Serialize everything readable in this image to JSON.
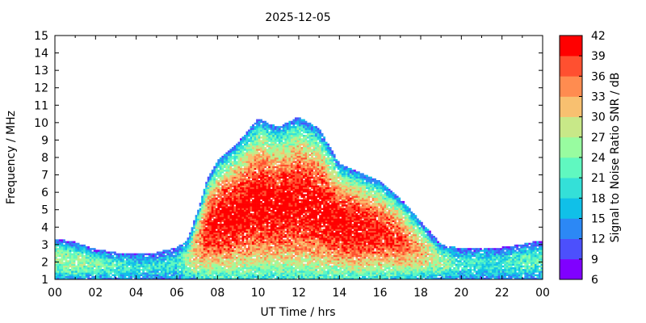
{
  "chart_data": {
    "type": "heatmap",
    "title": "2025-12-05",
    "xlabel": "UT Time / hrs",
    "ylabel": "Frequency / MHz",
    "colorbar_label": "Signal to Noise Ratio SNR / dB",
    "xlim": [
      0,
      24
    ],
    "ylim": [
      1,
      15
    ],
    "x_ticks": [
      "00",
      "02",
      "04",
      "06",
      "08",
      "10",
      "12",
      "14",
      "16",
      "18",
      "20",
      "22",
      "00"
    ],
    "y_ticks": [
      "1",
      "2",
      "3",
      "4",
      "5",
      "6",
      "7",
      "8",
      "9",
      "10",
      "11",
      "12",
      "13",
      "14",
      "15"
    ],
    "colorbar": {
      "range": [
        6,
        42
      ],
      "ticks": [
        "6",
        "9",
        "12",
        "15",
        "18",
        "21",
        "24",
        "27",
        "30",
        "33",
        "36",
        "39",
        "42"
      ],
      "colors": [
        "#8000ff",
        "#4c50fc",
        "#2c88f5",
        "#10c0e8",
        "#34e0d8",
        "#60f8c0",
        "#98fca0",
        "#c8e888",
        "#f8c070",
        "#ff8c50",
        "#ff5030",
        "#ff0000"
      ]
    },
    "envelope": [
      {
        "t": 0,
        "fmin": 1.0,
        "fmax": 3.3,
        "snr_peak": 26
      },
      {
        "t": 1,
        "fmin": 1.0,
        "fmax": 3.1,
        "snr_peak": 26
      },
      {
        "t": 2,
        "fmin": 1.0,
        "fmax": 2.7,
        "snr_peak": 24
      },
      {
        "t": 3,
        "fmin": 1.0,
        "fmax": 2.5,
        "snr_peak": 22
      },
      {
        "t": 4,
        "fmin": 1.0,
        "fmax": 2.4,
        "snr_peak": 20
      },
      {
        "t": 5,
        "fmin": 1.0,
        "fmax": 2.5,
        "snr_peak": 20
      },
      {
        "t": 6,
        "fmin": 1.0,
        "fmax": 2.8,
        "snr_peak": 20
      },
      {
        "t": 6.5,
        "fmin": 1.0,
        "fmax": 3.2,
        "snr_peak": 26
      },
      {
        "t": 7,
        "fmin": 1.0,
        "fmax": 4.8,
        "snr_peak": 34
      },
      {
        "t": 7.5,
        "fmin": 1.0,
        "fmax": 6.8,
        "snr_peak": 40
      },
      {
        "t": 8,
        "fmin": 1.0,
        "fmax": 7.8,
        "snr_peak": 42
      },
      {
        "t": 9,
        "fmin": 1.0,
        "fmax": 8.8,
        "snr_peak": 42
      },
      {
        "t": 10,
        "fmin": 1.0,
        "fmax": 10.2,
        "snr_peak": 42
      },
      {
        "t": 11,
        "fmin": 1.0,
        "fmax": 9.7,
        "snr_peak": 42
      },
      {
        "t": 12,
        "fmin": 1.0,
        "fmax": 10.3,
        "snr_peak": 42
      },
      {
        "t": 13,
        "fmin": 1.0,
        "fmax": 9.6,
        "snr_peak": 42
      },
      {
        "t": 14,
        "fmin": 1.0,
        "fmax": 7.6,
        "snr_peak": 42
      },
      {
        "t": 15,
        "fmin": 1.0,
        "fmax": 7.1,
        "snr_peak": 42
      },
      {
        "t": 16,
        "fmin": 1.0,
        "fmax": 6.6,
        "snr_peak": 40
      },
      {
        "t": 17,
        "fmin": 1.0,
        "fmax": 5.6,
        "snr_peak": 38
      },
      {
        "t": 18,
        "fmin": 1.0,
        "fmax": 4.3,
        "snr_peak": 32
      },
      {
        "t": 19,
        "fmin": 1.0,
        "fmax": 3.0,
        "snr_peak": 26
      },
      {
        "t": 20,
        "fmin": 1.0,
        "fmax": 2.7,
        "snr_peak": 20
      },
      {
        "t": 21,
        "fmin": 1.0,
        "fmax": 2.8,
        "snr_peak": 20
      },
      {
        "t": 22,
        "fmin": 1.0,
        "fmax": 2.8,
        "snr_peak": 20
      },
      {
        "t": 23,
        "fmin": 1.0,
        "fmax": 3.0,
        "snr_peak": 22
      },
      {
        "t": 24,
        "fmin": 1.0,
        "fmax": 3.2,
        "snr_peak": 22
      }
    ]
  }
}
